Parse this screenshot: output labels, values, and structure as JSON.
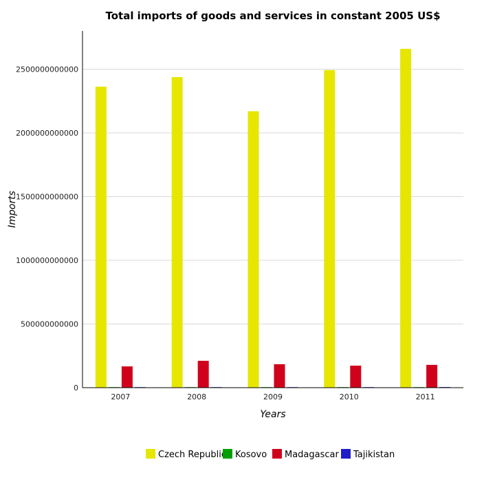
{
  "chart_data": {
    "type": "bar",
    "title": "Total imports of goods and services in constant 2005 US$",
    "xlabel": "Years",
    "ylabel": "Imports",
    "categories": [
      "2007",
      "2008",
      "2009",
      "2010",
      "2011"
    ],
    "ylim": [
      0,
      2800000000000
    ],
    "yticks": [
      0,
      500000000000,
      1000000000000,
      1500000000000,
      2000000000000,
      2500000000000
    ],
    "ytick_labels": [
      "0",
      "500000000000",
      "1000000000000",
      "1500000000000",
      "2000000000000",
      "2500000000000"
    ],
    "grid": true,
    "legend_position": "bottom",
    "series": [
      {
        "name": "Czech Republic",
        "color": "#e6e600",
        "values": [
          2363000000000,
          2438000000000,
          2170000000000,
          2493000000000,
          2660000000000
        ]
      },
      {
        "name": "Kosovo",
        "color": "#00a000",
        "values": [
          2400000000,
          2700000000,
          2800000000,
          2900000000,
          3000000000
        ]
      },
      {
        "name": "Madagascar",
        "color": "#d0021b",
        "values": [
          167000000000,
          211000000000,
          184000000000,
          173000000000,
          179000000000
        ]
      },
      {
        "name": "Tajikistan",
        "color": "#1e1ec8",
        "values": [
          3200000000,
          4000000000,
          3900000000,
          4400000000,
          4900000000
        ]
      }
    ]
  }
}
